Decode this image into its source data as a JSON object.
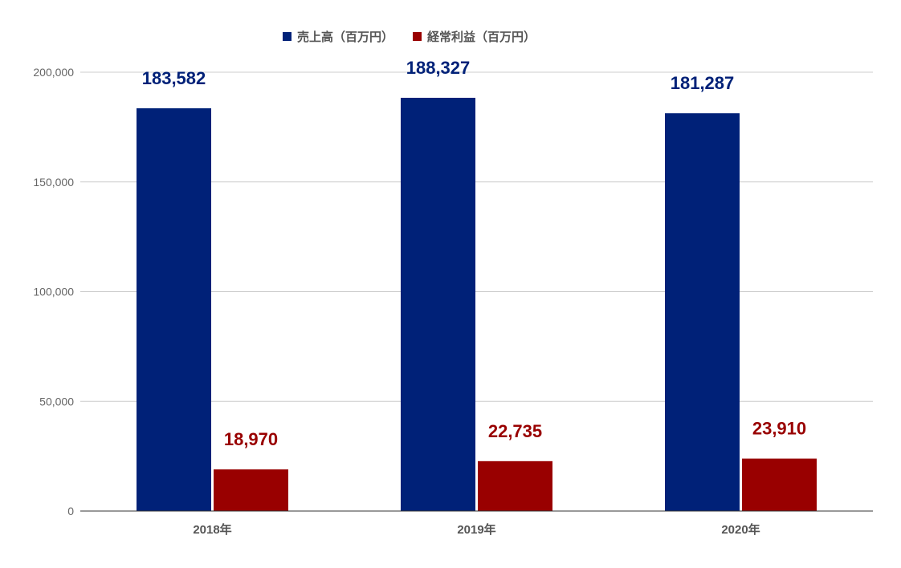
{
  "chart_data": {
    "type": "bar",
    "categories": [
      "2018年",
      "2019年",
      "2020年"
    ],
    "series": [
      {
        "name": "売上高（百万円）",
        "color": "#002178",
        "values": [
          183582,
          188327,
          181287
        ],
        "labels": [
          "183,582",
          "188,327",
          "181,287"
        ]
      },
      {
        "name": "経常利益（百万円）",
        "color": "#990000",
        "values": [
          18970,
          22735,
          23910
        ],
        "labels": [
          "18,970",
          "22,735",
          "23,910"
        ]
      }
    ],
    "yticks": [
      0,
      50000,
      100000,
      150000,
      200000
    ],
    "ytick_labels": [
      "0",
      "50,000",
      "100,000",
      "150,000",
      "200,000"
    ],
    "ylim": [
      0,
      200000
    ],
    "grid": true,
    "legend": "top-center",
    "title": "",
    "xlabel": "",
    "ylabel": ""
  }
}
